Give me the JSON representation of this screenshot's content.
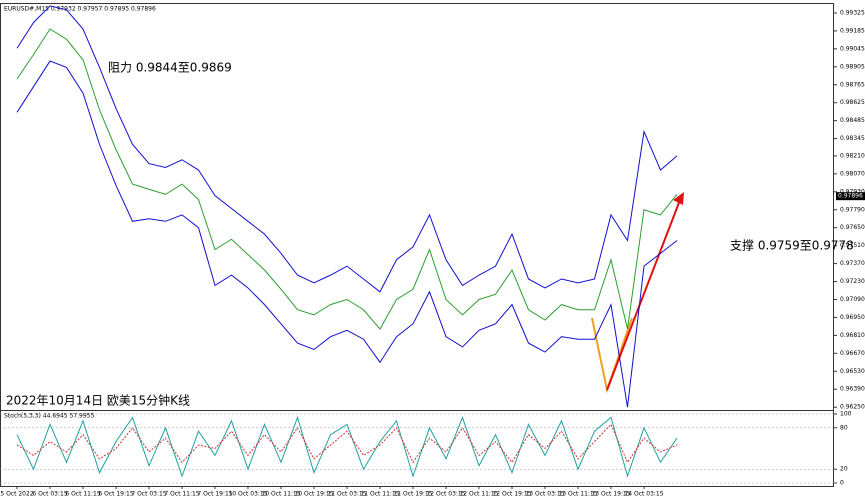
{
  "chart_data": [
    {
      "type": "line",
      "header": "EURUSD#,M15 0.97932 0.97957 0.97895 0.97896",
      "annotations": [
        "阻力 0.9844至0.9869",
        "支撑 0.9759至0.9778",
        "2022年10月14日 欧美15分钟K线"
      ],
      "categories": [
        "5 Oct 2022",
        null,
        "6 Oct 03:15",
        null,
        "6 Oct 11:15",
        null,
        "6 Oct 19:15",
        null,
        "7 Oct 03:15",
        null,
        "7 Oct 11:15",
        null,
        "7 Oct 19:15",
        null,
        "10 Oct 03:15",
        null,
        "10 Oct 11:15",
        null,
        "10 Oct 19:15",
        null,
        "11 Oct 03:15",
        null,
        "11 Oct 11:15",
        null,
        "11 Oct 19:15",
        null,
        "12 Oct 03:15",
        null,
        "12 Oct 11:15",
        null,
        "12 Oct 19:15",
        null,
        "13 Oct 03:15",
        null,
        "13 Oct 11:15",
        null,
        "13 Oct 19:15",
        null,
        "14 Oct 03:15",
        null,
        null
      ],
      "series": [
        {
          "color": "#2e9e2e",
          "values": [
            0.9881,
            0.99,
            0.992,
            0.9912,
            0.9896,
            0.9857,
            0.9826,
            0.9799,
            0.9795,
            0.9791,
            0.9799,
            0.9787,
            0.9748,
            0.9756,
            0.9744,
            0.9732,
            0.9717,
            0.9701,
            0.9697,
            0.9705,
            0.9709,
            0.9701,
            0.9686,
            0.9709,
            0.9717,
            0.9748,
            0.9709,
            0.9697,
            0.9709,
            0.9713,
            0.9732,
            0.9701,
            0.9693,
            0.9705,
            0.9701,
            0.9701,
            0.974,
            0.9686,
            0.9779,
            0.9775,
            0.9791
          ]
        },
        {
          "color": "#1010d0",
          "values": [
            0.9905,
            0.9925,
            0.9938,
            0.9935,
            0.992,
            0.989,
            0.9858,
            0.983,
            0.9815,
            0.9812,
            0.9818,
            0.981,
            0.979,
            0.978,
            0.977,
            0.976,
            0.9745,
            0.9728,
            0.9722,
            0.9728,
            0.9735,
            0.9725,
            0.9715,
            0.974,
            0.975,
            0.9775,
            0.974,
            0.972,
            0.9728,
            0.9735,
            0.976,
            0.9725,
            0.9718,
            0.9725,
            0.9722,
            0.9725,
            0.9775,
            0.9755,
            0.984,
            0.981,
            0.9821
          ]
        },
        {
          "color": "#1010d0",
          "values": [
            0.9855,
            0.9875,
            0.9895,
            0.989,
            0.987,
            0.983,
            0.9798,
            0.977,
            0.9772,
            0.977,
            0.9775,
            0.9765,
            0.972,
            0.9728,
            0.9718,
            0.9705,
            0.969,
            0.9675,
            0.967,
            0.968,
            0.9685,
            0.9678,
            0.966,
            0.968,
            0.969,
            0.9715,
            0.968,
            0.9672,
            0.9685,
            0.969,
            0.9705,
            0.9675,
            0.9668,
            0.968,
            0.9678,
            0.9678,
            0.9705,
            0.9625,
            0.9735,
            0.9745,
            0.9755
          ]
        }
      ],
      "ylim": [
        0.96228,
        0.99395
      ],
      "yticks": [
        0.99325,
        0.99185,
        0.99045,
        0.98905,
        0.98765,
        0.98625,
        0.98485,
        0.98345,
        {
          "value": 0.9821,
          "label": "0.98210"
        },
        {
          "value": 0.9807,
          "label": "0.98070"
        },
        {
          "value": 0.9793,
          "label": "0.97930"
        },
        {
          "value": 0.9779,
          "label": "0.97790"
        },
        {
          "value": 0.9765,
          "label": "0.97650"
        },
        {
          "value": 0.9751,
          "label": "0.97510"
        },
        {
          "value": 0.9737,
          "label": "0.97370"
        },
        {
          "value": 0.9723,
          "label": "0.97230"
        },
        {
          "value": 0.9709,
          "label": "0.97090"
        },
        {
          "value": 0.9695,
          "label": "0.96950"
        },
        {
          "value": 0.9681,
          "label": "0.96810"
        },
        {
          "value": 0.9667,
          "label": "0.96670"
        },
        {
          "value": 0.9653,
          "label": "0.96530"
        },
        {
          "value": 0.9639,
          "label": "0.96390"
        },
        {
          "value": 0.9625,
          "label": "0.96250"
        }
      ],
      "price_marker": 0.97896
    },
    {
      "type": "line",
      "header": "Stoch(5,3,3) 44.6945 57.9955",
      "series": [
        {
          "color": "#20a0a0",
          "values": [
            70,
            20,
            85,
            30,
            90,
            15,
            60,
            95,
            25,
            80,
            10,
            75,
            40,
            90,
            20,
            85,
            30,
            95,
            15,
            70,
            85,
            20,
            60,
            90,
            10,
            80,
            35,
            95,
            25,
            70,
            15,
            85,
            40,
            90,
            20,
            75,
            95,
            10,
            80,
            30,
            65
          ]
        },
        {
          "color": "#d03030",
          "values": [
            55,
            40,
            60,
            45,
            70,
            35,
            50,
            80,
            45,
            65,
            30,
            55,
            50,
            75,
            40,
            70,
            45,
            80,
            35,
            55,
            75,
            40,
            55,
            80,
            30,
            65,
            45,
            80,
            40,
            60,
            30,
            70,
            50,
            75,
            35,
            60,
            85,
            30,
            65,
            45,
            55
          ]
        }
      ],
      "ylim": [
        -4.3,
        104.3
      ],
      "yticks": [
        100,
        80,
        20,
        0
      ]
    }
  ]
}
